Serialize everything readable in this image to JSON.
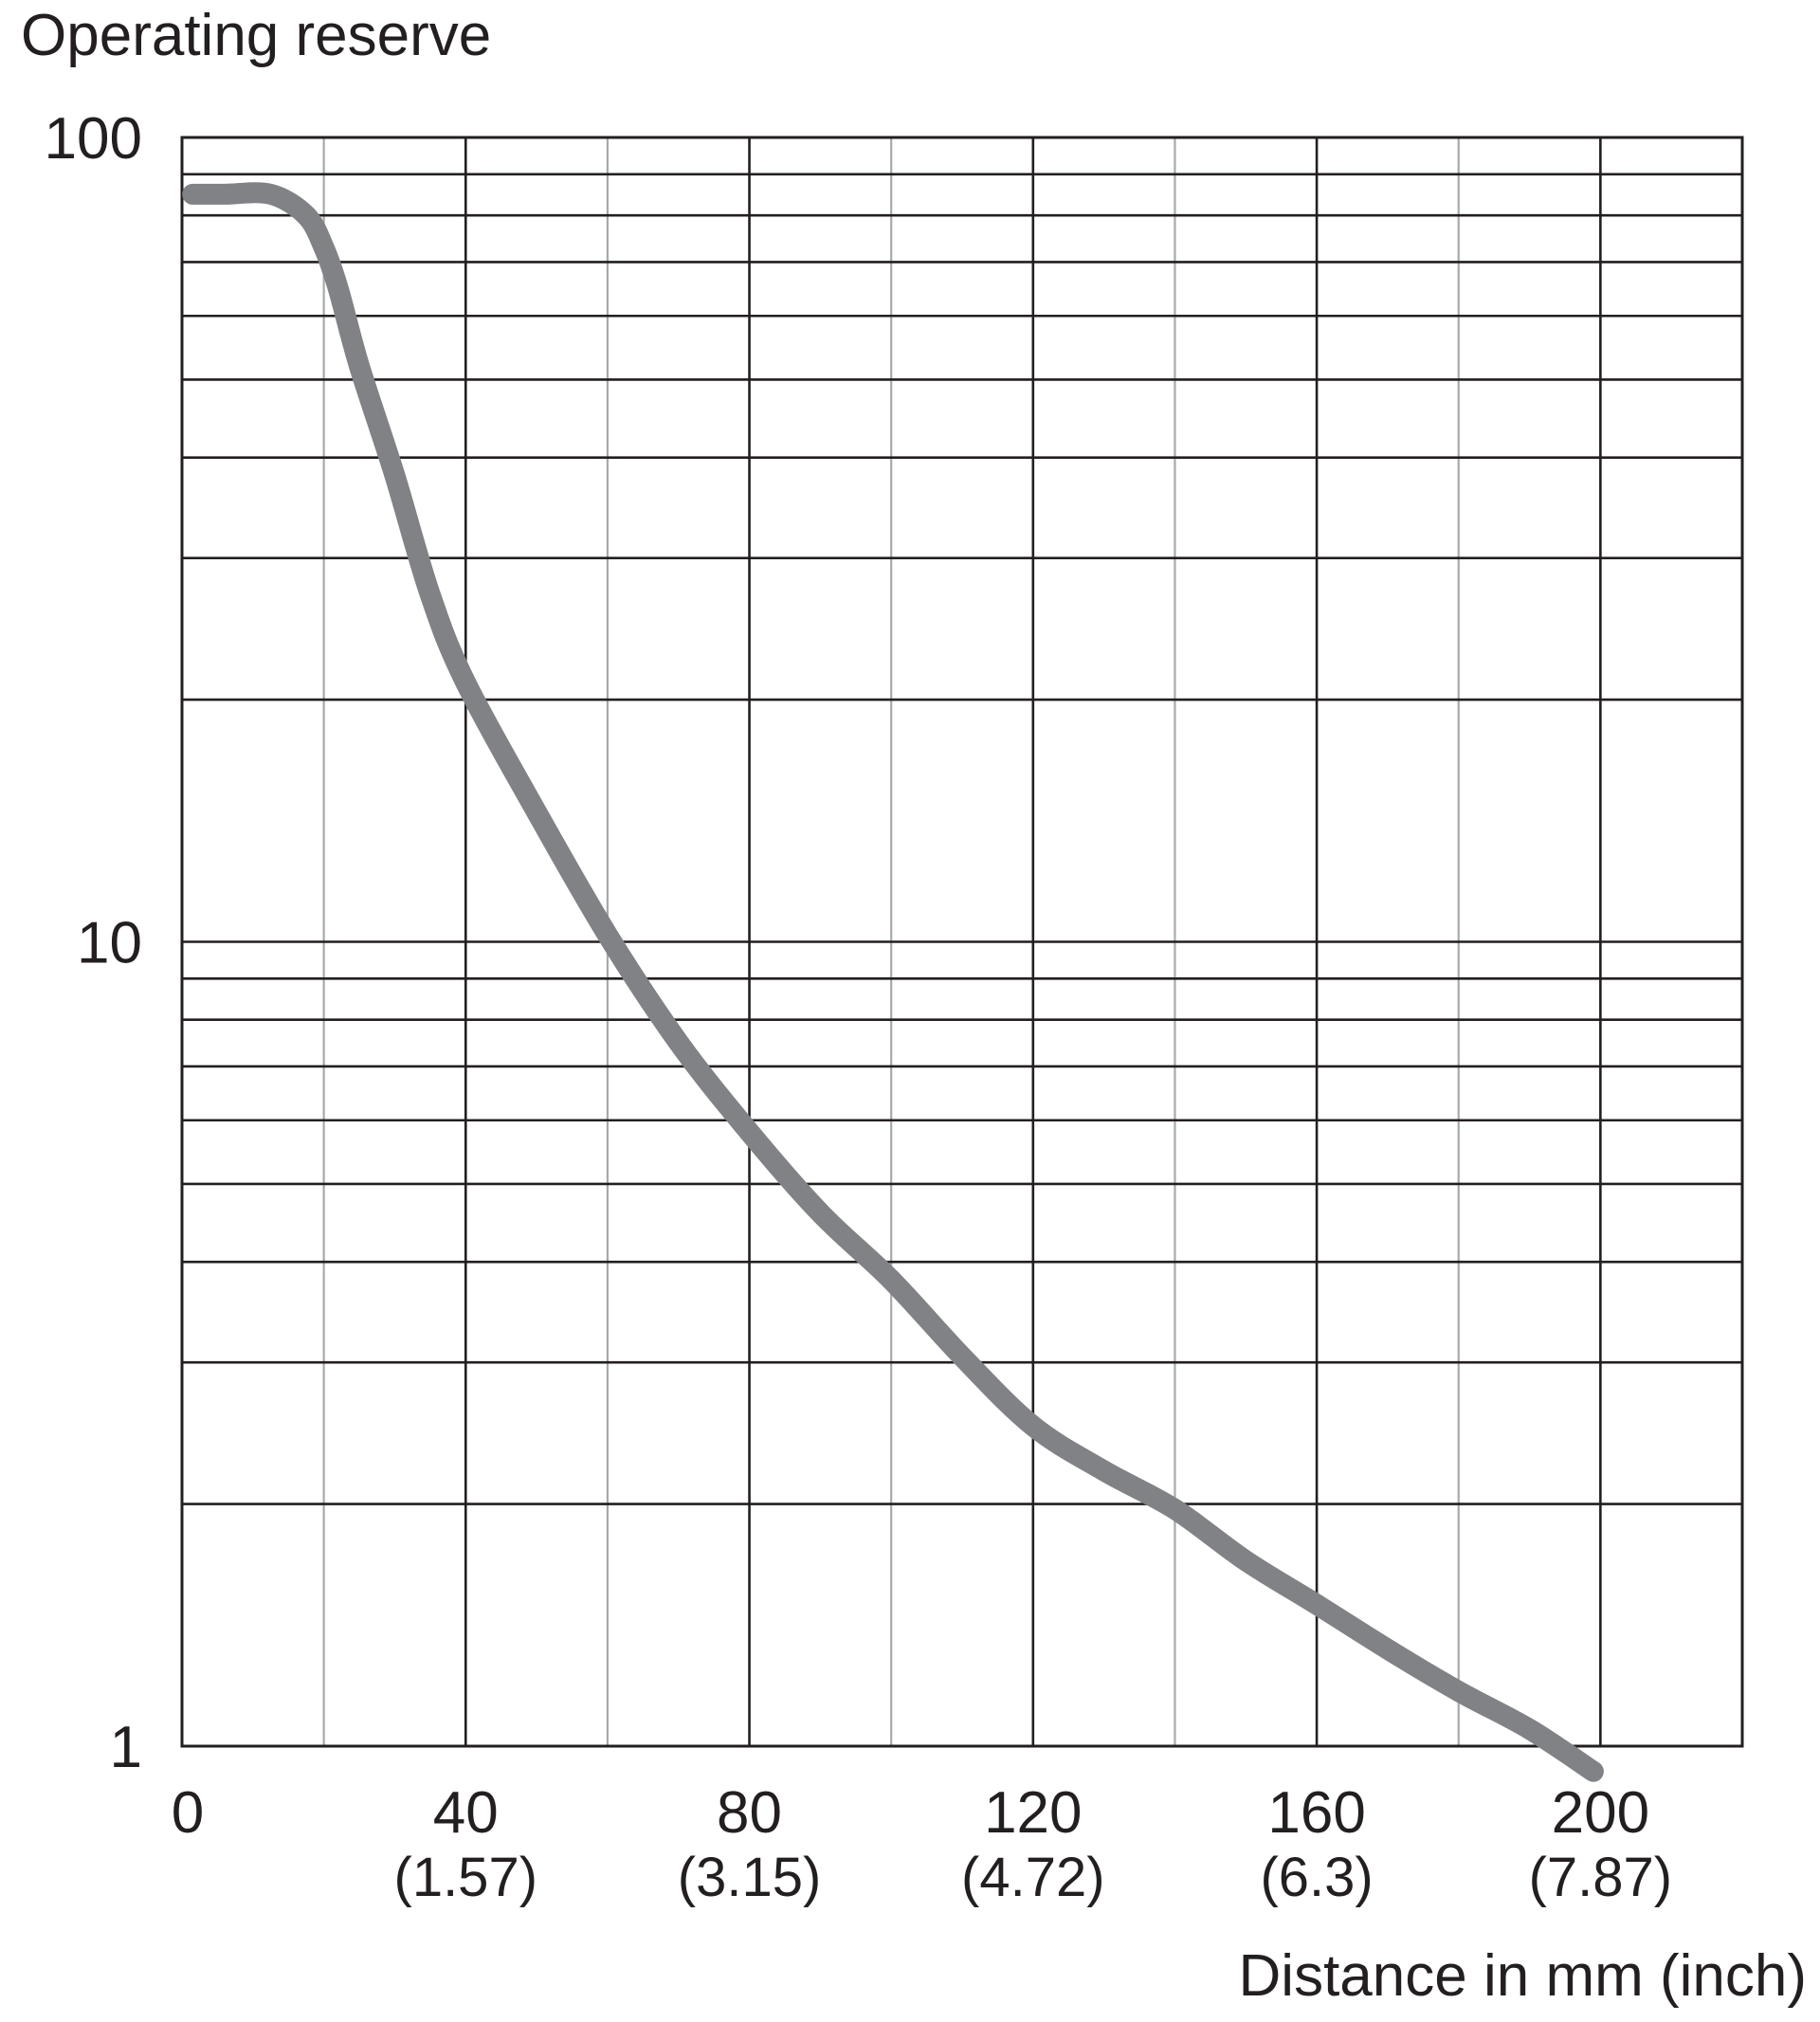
{
  "chart_data": {
    "type": "line",
    "title": "",
    "ylabel": "Operating reserve",
    "xlabel": "Distance in mm (inch)",
    "y_scale": "log",
    "ylim": [
      1,
      100
    ],
    "xlim": [
      0,
      220
    ],
    "y_ticks": [
      {
        "value": 100,
        "label": "100"
      },
      {
        "value": 10,
        "label": "10"
      },
      {
        "value": 1,
        "label": "1"
      }
    ],
    "x_ticks": [
      {
        "value": 0,
        "label": "0",
        "sublabel": ""
      },
      {
        "value": 40,
        "label": "40",
        "sublabel": "(1.57)"
      },
      {
        "value": 80,
        "label": "80",
        "sublabel": "(3.15)"
      },
      {
        "value": 120,
        "label": "120",
        "sublabel": "(4.72)"
      },
      {
        "value": 160,
        "label": "160",
        "sublabel": "(6.3)"
      },
      {
        "value": 200,
        "label": "200",
        "sublabel": "(7.87)"
      }
    ],
    "grid": true,
    "series": [
      {
        "color": "#808285",
        "x": [
          1.5,
          6,
          12.5,
          17.5,
          20,
          22,
          25,
          30,
          35,
          40,
          50,
          60,
          70,
          80,
          90,
          100,
          110,
          120,
          130,
          140,
          150,
          160,
          170,
          180,
          190,
          199
        ],
        "y": [
          85,
          85,
          85,
          80,
          73,
          65,
          52,
          38,
          27,
          21,
          14.5,
          10.2,
          7.5,
          5.8,
          4.6,
          3.8,
          3.05,
          2.5,
          2.2,
          1.97,
          1.7,
          1.5,
          1.32,
          1.17,
          1.05,
          0.93
        ]
      }
    ]
  }
}
